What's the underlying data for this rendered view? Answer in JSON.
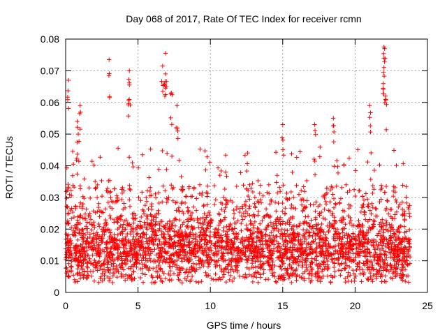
{
  "chart_data": {
    "type": "scatter",
    "title": "Day 068 of 2017, Rate Of TEC Index for receiver rcmn",
    "xlabel": "GPS time / hours",
    "ylabel": "ROTI / TECUs",
    "xlim": [
      0,
      25
    ],
    "ylim": [
      0,
      0.08
    ],
    "x_ticks": [
      0,
      5,
      10,
      15,
      20,
      25
    ],
    "x_tick_labels": [
      "0",
      "5",
      "10",
      "15",
      "20",
      "25"
    ],
    "y_ticks": [
      0,
      0.01,
      0.02,
      0.03,
      0.04,
      0.05,
      0.06,
      0.07,
      0.08
    ],
    "y_tick_labels": [
      "0",
      "0.01",
      "0.02",
      "0.03",
      "0.04",
      "0.05",
      "0.06",
      "0.07",
      "0.08"
    ],
    "grid": true,
    "marker": "+",
    "marker_color": "#ff0000",
    "series": [
      {
        "name": "ROTI",
        "x_range": [
          0,
          23.8
        ],
        "typical_y": [
          0.005,
          0.025
        ],
        "outliers": [
          {
            "x": 0.2,
            "y": 0.067
          },
          {
            "x": 1.0,
            "y": 0.059
          },
          {
            "x": 0.8,
            "y": 0.054
          },
          {
            "x": 3.0,
            "y": 0.0735
          },
          {
            "x": 4.4,
            "y": 0.07
          },
          {
            "x": 4.4,
            "y": 0.0655
          },
          {
            "x": 6.7,
            "y": 0.0715
          },
          {
            "x": 6.9,
            "y": 0.0755
          },
          {
            "x": 6.9,
            "y": 0.069
          },
          {
            "x": 7.3,
            "y": 0.063
          },
          {
            "x": 7.7,
            "y": 0.059
          },
          {
            "x": 15.0,
            "y": 0.053
          },
          {
            "x": 17.2,
            "y": 0.053
          },
          {
            "x": 18.5,
            "y": 0.055
          },
          {
            "x": 21.0,
            "y": 0.059
          },
          {
            "x": 22.0,
            "y": 0.0775
          },
          {
            "x": 22.0,
            "y": 0.074
          },
          {
            "x": 22.0,
            "y": 0.071
          },
          {
            "x": 22.1,
            "y": 0.062
          }
        ]
      }
    ]
  }
}
